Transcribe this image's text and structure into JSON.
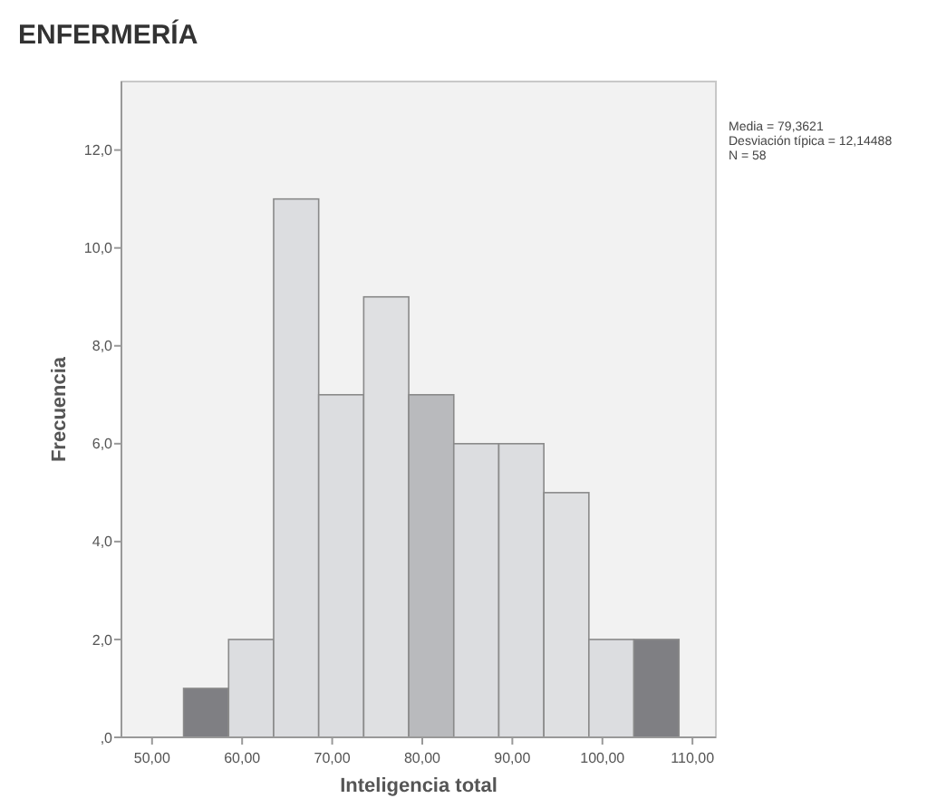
{
  "chart_data": {
    "type": "histogram",
    "title": "ENFERMERÍA",
    "xlabel": "Inteligencia total",
    "ylabel": "Frecuencia",
    "bins": [
      53.5,
      58.5,
      63.5,
      68.5,
      73.5,
      78.5,
      83.5,
      88.5,
      93.5,
      98.5,
      103.5,
      108.5
    ],
    "values": [
      1,
      2,
      11,
      7,
      9,
      7,
      6,
      6,
      5,
      2,
      2
    ],
    "colors": [
      "#7f7f83",
      "#dcdde0",
      "#dcdde0",
      "#dcdde0",
      "#dfe0e2",
      "#b9babd",
      "#dcdde0",
      "#dcdde0",
      "#dfe0e2",
      "#dcdde0",
      "#7f7f83"
    ],
    "xlim": [
      46.6,
      112.6
    ],
    "ylim": [
      0,
      13.4
    ],
    "xticks": [
      {
        "value": 50,
        "label": "50,00"
      },
      {
        "value": 60,
        "label": "60,00"
      },
      {
        "value": 70,
        "label": "70,00"
      },
      {
        "value": 80,
        "label": "80,00"
      },
      {
        "value": 90,
        "label": "90,00"
      },
      {
        "value": 100,
        "label": "100,00"
      },
      {
        "value": 110,
        "label": "110,00"
      }
    ],
    "yticks": [
      {
        "value": 0,
        "label": ",0"
      },
      {
        "value": 2,
        "label": "2,0"
      },
      {
        "value": 4,
        "label": "4,0"
      },
      {
        "value": 6,
        "label": "6,0"
      },
      {
        "value": 8,
        "label": "8,0"
      },
      {
        "value": 10,
        "label": "10,0"
      },
      {
        "value": 12,
        "label": "12,0"
      }
    ],
    "annotations": [
      "Media = 79,3621",
      "Desviación típica = 12,14488",
      "N = 58"
    ]
  }
}
